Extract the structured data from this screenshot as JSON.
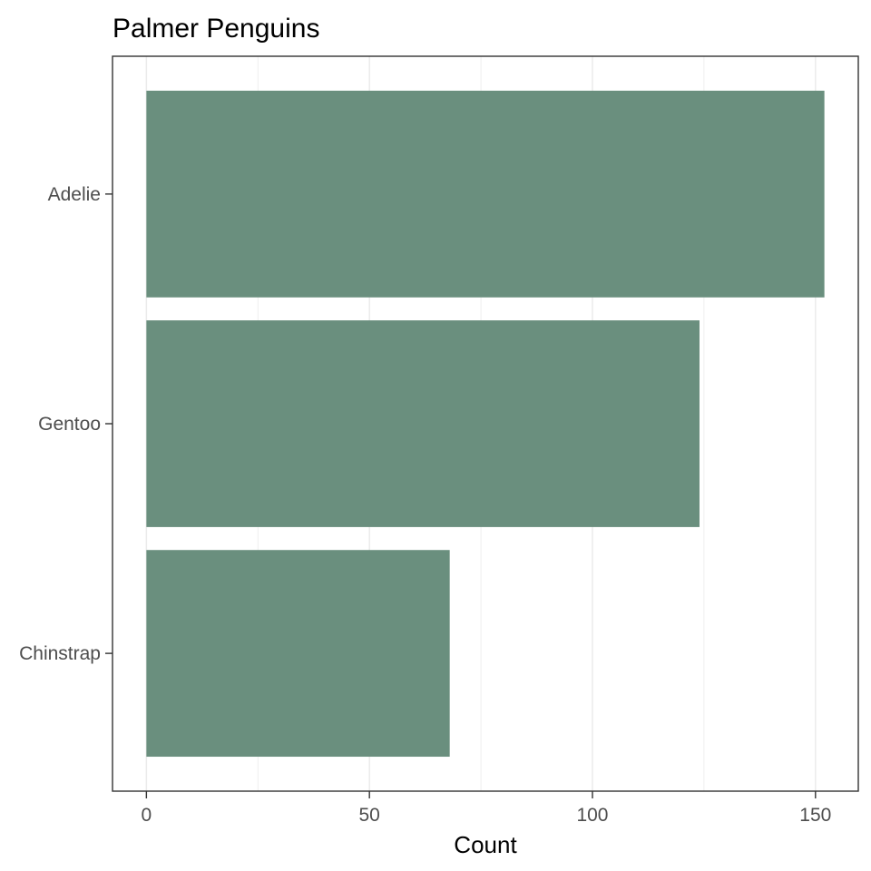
{
  "chart_data": {
    "type": "bar",
    "orientation": "horizontal",
    "title": "Palmer Penguins",
    "xlabel": "Count",
    "ylabel": "",
    "categories": [
      "Adelie",
      "Gentoo",
      "Chinstrap"
    ],
    "values": [
      152,
      124,
      68
    ],
    "xlim": [
      -7.6,
      159.6
    ],
    "xticks": [
      0,
      50,
      100,
      150
    ],
    "xtick_labels": [
      "0",
      "50",
      "100",
      "150"
    ],
    "grid": "vertical-major",
    "legend": "none",
    "bar_color": "#6a8f7e",
    "grid_color": "#ebebeb",
    "border_color": "#333333"
  }
}
